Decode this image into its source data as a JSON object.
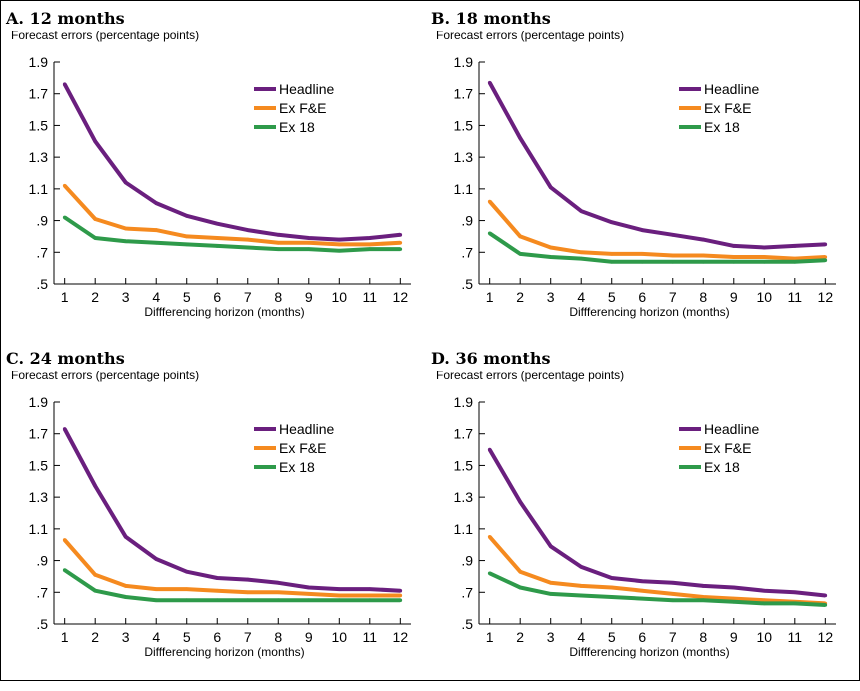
{
  "colors": {
    "headline": "#6a1f7e",
    "ex_fe": "#f58a1f",
    "ex18": "#2e9a4a",
    "axis": "#000000"
  },
  "chart_data": [
    {
      "type": "line",
      "title": "A. 12 months",
      "ylabel": "Forecast errors (percentage points)",
      "xlabel": "Diffferencing horizon (months)",
      "ylim": [
        0.5,
        1.9
      ],
      "yticks": [
        "1.9",
        "1.7",
        "1.5",
        "1.3",
        "1.1",
        ".9",
        ".7",
        ".5"
      ],
      "yticks_values": [
        1.9,
        1.7,
        1.5,
        1.3,
        1.1,
        0.9,
        0.7,
        0.5
      ],
      "x": [
        1,
        2,
        3,
        4,
        5,
        6,
        7,
        8,
        9,
        10,
        11,
        12
      ],
      "legend_position": "top-right",
      "grid": false,
      "series": [
        {
          "name": "Headline",
          "values": [
            1.76,
            1.4,
            1.14,
            1.01,
            0.93,
            0.88,
            0.84,
            0.81,
            0.79,
            0.78,
            0.79,
            0.81
          ]
        },
        {
          "name": "Ex F&E",
          "values": [
            1.12,
            0.91,
            0.85,
            0.84,
            0.8,
            0.79,
            0.78,
            0.76,
            0.76,
            0.75,
            0.75,
            0.76
          ]
        },
        {
          "name": "Ex 18",
          "values": [
            0.92,
            0.79,
            0.77,
            0.76,
            0.75,
            0.74,
            0.73,
            0.72,
            0.72,
            0.71,
            0.72,
            0.72
          ]
        }
      ]
    },
    {
      "type": "line",
      "title": "B. 18 months",
      "ylabel": "Forecast errors (percentage points)",
      "xlabel": "Diffferencing horizon (months)",
      "ylim": [
        0.5,
        1.9
      ],
      "yticks": [
        "1.9",
        "1.7",
        "1.5",
        "1.3",
        "1.1",
        ".9",
        ".7",
        ".5"
      ],
      "yticks_values": [
        1.9,
        1.7,
        1.5,
        1.3,
        1.1,
        0.9,
        0.7,
        0.5
      ],
      "x": [
        1,
        2,
        3,
        4,
        5,
        6,
        7,
        8,
        9,
        10,
        11,
        12
      ],
      "legend_position": "top-right",
      "grid": false,
      "series": [
        {
          "name": "Headline",
          "values": [
            1.77,
            1.42,
            1.11,
            0.96,
            0.89,
            0.84,
            0.81,
            0.78,
            0.74,
            0.73,
            0.74,
            0.75
          ]
        },
        {
          "name": "Ex F&E",
          "values": [
            1.02,
            0.8,
            0.73,
            0.7,
            0.69,
            0.69,
            0.68,
            0.68,
            0.67,
            0.67,
            0.66,
            0.67
          ]
        },
        {
          "name": "Ex 18",
          "values": [
            0.82,
            0.69,
            0.67,
            0.66,
            0.64,
            0.64,
            0.64,
            0.64,
            0.64,
            0.64,
            0.64,
            0.65
          ]
        }
      ]
    },
    {
      "type": "line",
      "title": "C. 24 months",
      "ylabel": "Forecast errors (percentage points)",
      "xlabel": "Diffferencing horizon (months)",
      "ylim": [
        0.5,
        1.9
      ],
      "yticks": [
        "1.9",
        "1.7",
        "1.5",
        "1.3",
        "1.1",
        ".9",
        ".7",
        ".5"
      ],
      "yticks_values": [
        1.9,
        1.7,
        1.5,
        1.3,
        1.1,
        0.9,
        0.7,
        0.5
      ],
      "x": [
        1,
        2,
        3,
        4,
        5,
        6,
        7,
        8,
        9,
        10,
        11,
        12
      ],
      "legend_position": "top-right",
      "grid": false,
      "series": [
        {
          "name": "Headline",
          "values": [
            1.73,
            1.37,
            1.05,
            0.91,
            0.83,
            0.79,
            0.78,
            0.76,
            0.73,
            0.72,
            0.72,
            0.71
          ]
        },
        {
          "name": "Ex F&E",
          "values": [
            1.03,
            0.81,
            0.74,
            0.72,
            0.72,
            0.71,
            0.7,
            0.7,
            0.69,
            0.68,
            0.68,
            0.68
          ]
        },
        {
          "name": "Ex 18",
          "values": [
            0.84,
            0.71,
            0.67,
            0.65,
            0.65,
            0.65,
            0.65,
            0.65,
            0.65,
            0.65,
            0.65,
            0.65
          ]
        }
      ]
    },
    {
      "type": "line",
      "title": "D. 36 months",
      "ylabel": "Forecast errors (percentage points)",
      "xlabel": "Diffferencing horizon (months)",
      "ylim": [
        0.5,
        1.9
      ],
      "yticks": [
        "1.9",
        "1.7",
        "1.5",
        "1.3",
        "1.1",
        ".9",
        ".7",
        ".5"
      ],
      "yticks_values": [
        1.9,
        1.7,
        1.5,
        1.3,
        1.1,
        0.9,
        0.7,
        0.5
      ],
      "x": [
        1,
        2,
        3,
        4,
        5,
        6,
        7,
        8,
        9,
        10,
        11,
        12
      ],
      "legend_position": "top-right",
      "grid": false,
      "series": [
        {
          "name": "Headline",
          "values": [
            1.6,
            1.27,
            0.99,
            0.86,
            0.79,
            0.77,
            0.76,
            0.74,
            0.73,
            0.71,
            0.7,
            0.68
          ]
        },
        {
          "name": "Ex F&E",
          "values": [
            1.05,
            0.83,
            0.76,
            0.74,
            0.73,
            0.71,
            0.69,
            0.67,
            0.66,
            0.65,
            0.64,
            0.63
          ]
        },
        {
          "name": "Ex 18",
          "values": [
            0.82,
            0.73,
            0.69,
            0.68,
            0.67,
            0.66,
            0.65,
            0.65,
            0.64,
            0.63,
            0.63,
            0.62
          ]
        }
      ]
    }
  ]
}
